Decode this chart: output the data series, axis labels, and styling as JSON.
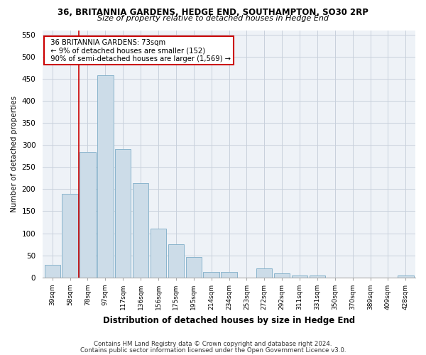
{
  "title1": "36, BRITANNIA GARDENS, HEDGE END, SOUTHAMPTON, SO30 2RP",
  "title2": "Size of property relative to detached houses in Hedge End",
  "xlabel": "Distribution of detached houses by size in Hedge End",
  "ylabel": "Number of detached properties",
  "categories": [
    "39sqm",
    "58sqm",
    "78sqm",
    "97sqm",
    "117sqm",
    "136sqm",
    "156sqm",
    "175sqm",
    "195sqm",
    "214sqm",
    "234sqm",
    "253sqm",
    "272sqm",
    "292sqm",
    "311sqm",
    "331sqm",
    "350sqm",
    "370sqm",
    "389sqm",
    "409sqm",
    "428sqm"
  ],
  "values": [
    28,
    190,
    285,
    458,
    290,
    213,
    110,
    75,
    47,
    13,
    12,
    0,
    21,
    10,
    5,
    5,
    0,
    0,
    0,
    0,
    5
  ],
  "bar_color": "#ccdce8",
  "bar_edge_color": "#8ab4cc",
  "vline_x": 1.5,
  "vline_color": "#cc0000",
  "annotation_line1": "  36 BRITANNIA GARDENS: 73sqm",
  "annotation_line2": "  ← 9% of detached houses are smaller (152)",
  "annotation_line3": "  90% of semi-detached houses are larger (1,569) →",
  "annotation_box_color": "#cc0000",
  "ylim": [
    0,
    560
  ],
  "yticks": [
    0,
    50,
    100,
    150,
    200,
    250,
    300,
    350,
    400,
    450,
    500,
    550
  ],
  "footer1": "Contains HM Land Registry data © Crown copyright and database right 2024.",
  "footer2": "Contains public sector information licensed under the Open Government Licence v3.0.",
  "bg_color": "#eef2f7",
  "grid_color": "#c8d0dc"
}
